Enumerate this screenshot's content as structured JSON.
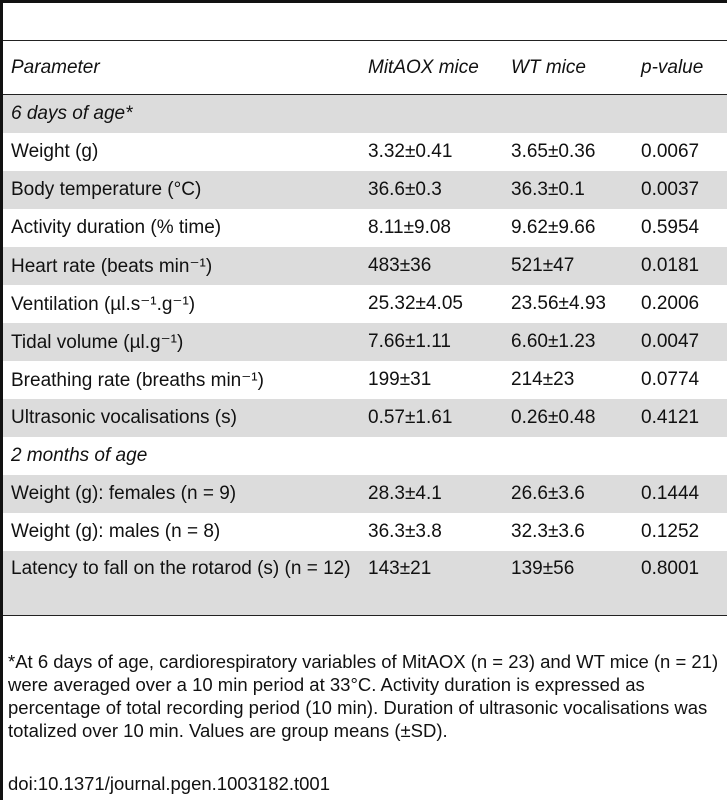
{
  "header": {
    "parameter": "Parameter",
    "mitaox": "MitAOX mice",
    "wt": "WT mice",
    "pvalue": "p-value"
  },
  "sections": [
    {
      "label": "6 days of age*",
      "rows": [
        {
          "parameter": "Weight (g)",
          "mitaox": "3.32±0.41",
          "wt": "3.65±0.36",
          "p": "0.0067"
        },
        {
          "parameter": "Body temperature (°C)",
          "mitaox": "36.6±0.3",
          "wt": "36.3±0.1",
          "p": "0.0037"
        },
        {
          "parameter": "Activity duration (% time)",
          "mitaox": "8.11±9.08",
          "wt": "9.62±9.66",
          "p": "0.5954"
        },
        {
          "parameter": "Heart rate (beats min⁻¹)",
          "mitaox": "483±36",
          "wt": "521±47",
          "p": "0.0181"
        },
        {
          "parameter": "Ventilation (µl.s⁻¹.g⁻¹)",
          "mitaox": "25.32±4.05",
          "wt": "23.56±4.93",
          "p": "0.2006"
        },
        {
          "parameter": "Tidal volume (µl.g⁻¹)",
          "mitaox": "7.66±1.11",
          "wt": "6.60±1.23",
          "p": "0.0047"
        },
        {
          "parameter": "Breathing rate (breaths min⁻¹)",
          "mitaox": "199±31",
          "wt": "214±23",
          "p": "0.0774"
        },
        {
          "parameter": "Ultrasonic vocalisations (s)",
          "mitaox": "0.57±1.61",
          "wt": "0.26±0.48",
          "p": "0.4121"
        }
      ]
    },
    {
      "label": "2 months of age",
      "rows": [
        {
          "parameter": "Weight (g): females (n = 9)",
          "mitaox": "28.3±4.1",
          "wt": "26.6±3.6",
          "p": "0.1444"
        },
        {
          "parameter": "Weight (g): males (n = 8)",
          "mitaox": "36.3±3.8",
          "wt": "32.3±3.6",
          "p": "0.1252"
        },
        {
          "parameter": "Latency to fall on the rotarod (s) (n = 12)",
          "mitaox": "143±21",
          "wt": "139±56",
          "p": "0.8001"
        }
      ]
    }
  ],
  "footnote": "*At 6 days of age, cardiorespiratory variables of MitAOX (n = 23) and WT mice (n = 21) were averaged over a 10 min period at 33°C. Activity duration is expressed as percentage of total recording period (10 min). Duration of ultrasonic vocalisations was totalized over 10 min. Values are group means (±SD).",
  "doi": "doi:10.1371/journal.pgen.1003182.t001"
}
